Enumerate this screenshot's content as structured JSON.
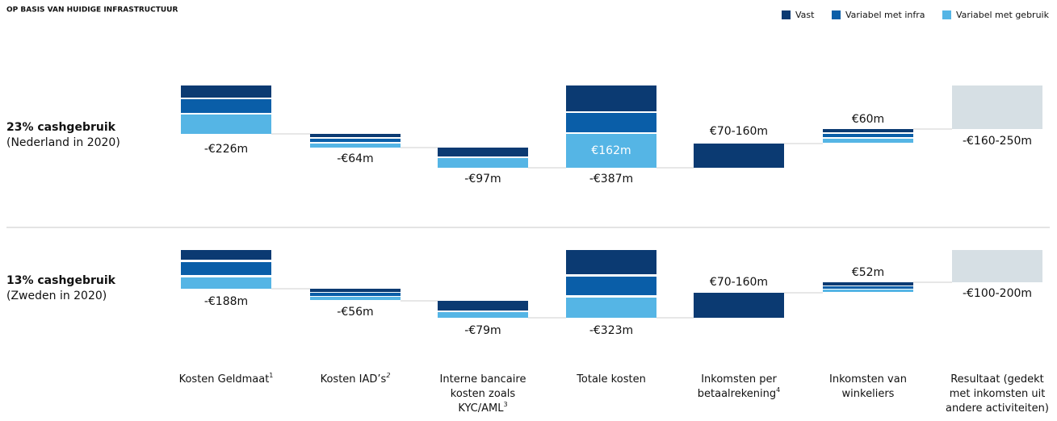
{
  "title": "OP BASIS VAN HUIDIGE INFRASTRUCTUUR",
  "legend": [
    "Vast",
    "Variabel met infra",
    "Variabel met gebruik"
  ],
  "rows": [
    {
      "label": "23% cashgebruik",
      "sublabel": "(Nederland in 2020)",
      "values": [
        "-€226m",
        "-€64m",
        "-€97m",
        "-€387m",
        "€70-160m",
        "€60m",
        "-€160-250m"
      ],
      "inside": "€162m"
    },
    {
      "label": "13% cashgebruik",
      "sublabel": "(Zweden in 2020)",
      "values": [
        "-€188m",
        "-€56m",
        "-€79m",
        "-€323m",
        "€70-160m",
        "€52m",
        "-€100-200m"
      ]
    }
  ],
  "columns": [
    {
      "lines": [
        "Kosten Geldmaat"
      ],
      "note": "1"
    },
    {
      "lines": [
        "Kosten IAD’s"
      ],
      "note": "2"
    },
    {
      "lines": [
        "Interne bancaire",
        "kosten zoals",
        "KYC/AML"
      ],
      "note": "3"
    },
    {
      "lines": [
        "Totale kosten"
      ]
    },
    {
      "lines": [
        "Inkomsten per",
        "betaalrekening"
      ],
      "note": "4"
    },
    {
      "lines": [
        "Inkomsten van",
        "winkeliers"
      ]
    },
    {
      "lines": [
        "Resultaat (gedekt",
        "met inkomsten uit",
        "andere activiteiten)"
      ]
    }
  ]
}
